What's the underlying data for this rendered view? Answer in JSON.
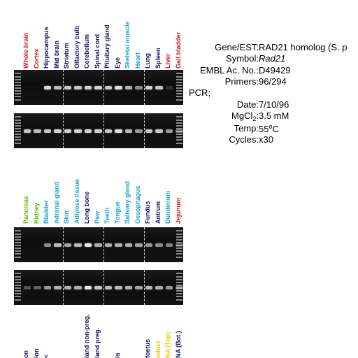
{
  "colors": {
    "red": "#d01818",
    "navy": "#101060",
    "cyan": "#1aa3cc",
    "green": "#5cb800",
    "yellow": "#e8c800"
  },
  "panel1": {
    "lanes": [
      {
        "label": "Whole brain",
        "color": "red"
      },
      {
        "label": "Cortex",
        "color": "red"
      },
      {
        "label": "Hippocampus",
        "color": "navy"
      },
      {
        "label": "Mid brain",
        "color": "navy"
      },
      {
        "label": "Striatum",
        "color": "navy"
      },
      {
        "label": "Olfactory bulb",
        "color": "navy"
      },
      {
        "label": "Cerebellum",
        "color": "navy"
      },
      {
        "label": "Spinal cord",
        "color": "navy"
      },
      {
        "label": "Pituitary gland",
        "color": "navy"
      },
      {
        "label": "Eye",
        "color": "navy"
      },
      {
        "label": "Skeletal muscle",
        "color": "cyan"
      },
      {
        "label": "Heart",
        "color": "cyan"
      },
      {
        "label": "Lung",
        "color": "navy"
      },
      {
        "label": "Spleen",
        "color": "navy"
      },
      {
        "label": "Liver",
        "color": "red"
      },
      {
        "label": "Gall bladder",
        "color": "red"
      }
    ],
    "gel_top_bands": [
      0,
      0,
      0.9,
      0.75,
      0.8,
      0.8,
      0.85,
      0.85,
      0.8,
      0.9,
      0.7,
      0.55,
      0.85,
      0.8,
      0.15,
      0
    ],
    "gel_bottom_bands": [
      0.8,
      0.75,
      0.8,
      0.85,
      0.85,
      0.85,
      0.85,
      0.85,
      0.8,
      0.9,
      0.75,
      0.6,
      0.8,
      0.8,
      0.6,
      0.4
    ]
  },
  "panel2": {
    "lanes": [
      {
        "label": "Pancreas",
        "color": "green"
      },
      {
        "label": "Kidney",
        "color": "green"
      },
      {
        "label": "Bladder",
        "color": "cyan"
      },
      {
        "label": "Adrenal gland",
        "color": "cyan"
      },
      {
        "label": "Skin",
        "color": "cyan"
      },
      {
        "label": "Adipose tissue",
        "color": "cyan"
      },
      {
        "label": "Long bone",
        "color": "navy"
      },
      {
        "label": "Paw",
        "color": "cyan"
      },
      {
        "label": "Teeth",
        "color": "cyan"
      },
      {
        "label": "Tongue",
        "color": "cyan"
      },
      {
        "label": "Salivary gland",
        "color": "cyan"
      },
      {
        "label": "Oesophagus",
        "color": "cyan"
      },
      {
        "label": "Fundus",
        "color": "navy"
      },
      {
        "label": "Antrum",
        "color": "navy"
      },
      {
        "label": "Duodenum",
        "color": "cyan"
      },
      {
        "label": "Jejunum",
        "color": "red"
      }
    ],
    "gel_top_bands": [
      0,
      0,
      0.55,
      0.75,
      0.65,
      0.75,
      0.95,
      0.7,
      0.7,
      0.7,
      0.7,
      0.65,
      0.6,
      0.55,
      0.5,
      0.3
    ],
    "gel_bottom_bands": [
      0.3,
      0.35,
      0.6,
      0.7,
      0.7,
      0.7,
      0.95,
      0.8,
      0.75,
      0.75,
      0.7,
      0.65,
      0.75,
      0.7,
      0.6,
      0.45
    ]
  },
  "panel3": {
    "lanes": [
      {
        "label": "on",
        "color": "navy"
      },
      {
        "label": "lon",
        "color": "navy"
      },
      {
        "label": "<",
        "color": "navy"
      },
      {
        "label": "",
        "color": "navy"
      },
      {
        "label": "",
        "color": "navy"
      },
      {
        "label": "",
        "color": "navy"
      },
      {
        "label": "land non-preg.",
        "color": "navy"
      },
      {
        "label": "land preg.",
        "color": "navy"
      },
      {
        "label": "",
        "color": "navy"
      },
      {
        "label": "is",
        "color": "navy"
      },
      {
        "label": "",
        "color": "navy"
      },
      {
        "label": "",
        "color": "navy"
      },
      {
        "label": "foetus",
        "color": "navy"
      },
      {
        "label": "oduct",
        "color": "yellow"
      },
      {
        "label": "NA (Top)",
        "color": "yellow"
      },
      {
        "label": "NA (Bot.)",
        "color": "navy"
      }
    ]
  },
  "info": {
    "gene_key": "Gene/EST:",
    "gene_val": "RAD21 homolog (S. p",
    "symbol_key": "Symbol:",
    "symbol_val": "Rad21",
    "embl_key": "EMBL Ac. No.:",
    "embl_val": "D49429",
    "primers_key": "Primers:",
    "primers_val": "96/294",
    "pcr_heading": "PCR;",
    "date_key": "Date:",
    "date_val": "7/10/96",
    "mgcl_key_main": "MgCl",
    "mgcl_key_sub": "2",
    "mgcl_key_colon": ":",
    "mgcl_val": "3.5 mM",
    "temp_key": "Temp:",
    "temp_val_num": "55",
    "temp_val_deg": "o",
    "temp_val_unit": "C",
    "cycles_key": "Cycles:",
    "cycles_val": "x30"
  }
}
